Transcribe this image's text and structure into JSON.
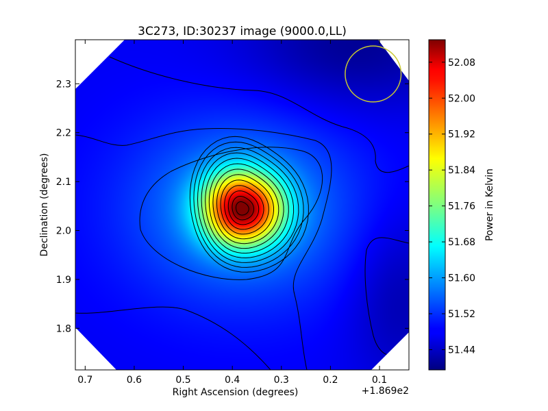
{
  "chart_data": {
    "type": "heatmap",
    "title": "3C273, ID:30237 image (9000.0,LL)",
    "xlabel": "Right Ascension (degrees)",
    "ylabel": "Declination (degrees)",
    "x_offset_label": "+1.869e2",
    "xlim": [
      0.72,
      0.04
    ],
    "ylim": [
      1.715,
      2.39
    ],
    "x_ticks": [
      {
        "value": 0.7,
        "label": "0.7"
      },
      {
        "value": 0.6,
        "label": "0.6"
      },
      {
        "value": 0.5,
        "label": "0.5"
      },
      {
        "value": 0.4,
        "label": "0.4"
      },
      {
        "value": 0.3,
        "label": "0.3"
      },
      {
        "value": 0.2,
        "label": "0.2"
      },
      {
        "value": 0.1,
        "label": "0.1"
      }
    ],
    "y_ticks": [
      {
        "value": 1.8,
        "label": "1.8"
      },
      {
        "value": 1.9,
        "label": "1.9"
      },
      {
        "value": 2.0,
        "label": "2.0"
      },
      {
        "value": 2.1,
        "label": "2.1"
      },
      {
        "value": 2.2,
        "label": "2.2"
      },
      {
        "value": 2.3,
        "label": "2.3"
      }
    ],
    "colorbar": {
      "label": "Power in Kelvin",
      "range": [
        51.395,
        52.13
      ],
      "colormap": "jet",
      "ticks": [
        {
          "value": 51.44,
          "label": "51.44"
        },
        {
          "value": 51.52,
          "label": "51.52"
        },
        {
          "value": 51.6,
          "label": "51.60"
        },
        {
          "value": 51.68,
          "label": "51.68"
        },
        {
          "value": 51.76,
          "label": "51.76"
        },
        {
          "value": 51.84,
          "label": "51.84"
        },
        {
          "value": 51.92,
          "label": "51.92"
        },
        {
          "value": 52.0,
          "label": "52.00"
        },
        {
          "value": 52.08,
          "label": "52.08"
        }
      ]
    },
    "peak": {
      "ra": 0.38,
      "dec": 2.045,
      "value": 52.13
    },
    "background_value": 51.48,
    "beam_circle": {
      "ra": 0.113,
      "dec": 2.32,
      "radius": 0.057,
      "color": "#c8c832"
    },
    "contours": {
      "count": 16,
      "color": "#000000"
    },
    "colors": {
      "masked_region": "#ffffff",
      "frame": "#000000"
    }
  }
}
